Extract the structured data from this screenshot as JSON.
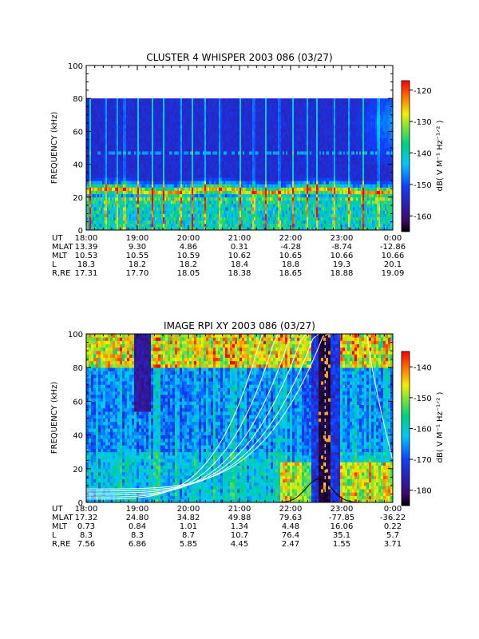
{
  "chart_data": [
    {
      "type": "heatmap",
      "title": "CLUSTER 4 WHISPER 2003 086 (03/27)",
      "ylabel": "FREQUENCY (kHz)",
      "ylim": [
        0,
        100
      ],
      "yticks": [
        "0",
        "20",
        "40",
        "60",
        "80",
        "100"
      ],
      "data_ymax": 80,
      "colorbar": {
        "label": "dB( V M⁻¹ Hz⁻¹ᐟ² )",
        "range": [
          -165,
          -117
        ],
        "ticks": [
          "-120",
          "-130",
          "-140",
          "-150",
          "-160"
        ]
      },
      "time_labels": [
        "18:00",
        "19:00",
        "20:00",
        "21:00",
        "22:00",
        "23:00",
        "0:00"
      ],
      "ephemeris": [
        {
          "label": "UT",
          "values": [
            "18:00",
            "19:00",
            "20:00",
            "21:00",
            "22:00",
            "23:00",
            "0:00"
          ]
        },
        {
          "label": "MLAT",
          "values": [
            "13.39",
            "9.30",
            "4.86",
            "0.31",
            "-4.28",
            "-8.74",
            "-12.86"
          ]
        },
        {
          "label": "MLT",
          "values": [
            "10.53",
            "10.55",
            "10.59",
            "10.62",
            "10.65",
            "10.66",
            "10.66"
          ]
        },
        {
          "label": "L",
          "values": [
            "18.3",
            "18.2",
            "18.2",
            "18.4",
            "18.8",
            "19.3",
            "20.1"
          ]
        },
        {
          "label": "R,RE",
          "values": [
            "17.31",
            "17.70",
            "18.05",
            "18.38",
            "18.65",
            "18.88",
            "19.09"
          ]
        }
      ],
      "features": {
        "main_band_khz": 24,
        "secondary_band_khz": 47,
        "vertical_spike_hours": [
          0.08,
          0.38,
          0.6,
          0.75,
          1.02,
          1.3,
          1.52,
          1.85,
          2.08,
          2.32,
          2.62,
          3.02,
          3.28,
          3.52,
          3.78,
          4.05,
          4.32,
          4.52,
          4.85,
          5.15,
          5.42,
          5.72
        ]
      }
    },
    {
      "type": "heatmap",
      "title": "IMAGE RPI XY 2003 086 (03/27)",
      "ylabel": "FREQUENCY (kHz)",
      "ylim": [
        0,
        100
      ],
      "yticks": [
        "0",
        "20",
        "40",
        "60",
        "80",
        "100"
      ],
      "colorbar": {
        "label": "dB( V M⁻¹ Hz⁻¹ᐟ² )",
        "range": [
          -185,
          -135
        ],
        "ticks": [
          "-140",
          "-150",
          "-160",
          "-170",
          "-180"
        ]
      },
      "time_labels": [
        "18:00",
        "19:00",
        "20:00",
        "21:00",
        "22:00",
        "23:00",
        "0:00"
      ],
      "ephemeris": [
        {
          "label": "UT",
          "values": [
            "18:00",
            "19:00",
            "20:00",
            "21:00",
            "22:00",
            "23:00",
            "0:00"
          ]
        },
        {
          "label": "MLAT",
          "values": [
            "17.32",
            "24.80",
            "34.82",
            "49.88",
            "79.63",
            "-77.85",
            "-36.22"
          ]
        },
        {
          "label": "MLT",
          "values": [
            "0.73",
            "0.84",
            "1.01",
            "1.34",
            "4.48",
            "16.06",
            "0.22"
          ]
        },
        {
          "label": "L",
          "values": [
            "8.3",
            "8.3",
            "8.7",
            "10.7",
            "76.4",
            "35.1",
            "5.7"
          ]
        },
        {
          "label": "R,RE",
          "values": [
            "7.56",
            "6.86",
            "5.85",
            "4.45",
            "2.47",
            "1.55",
            "3.71"
          ]
        }
      ],
      "features": {
        "dark_gap_hours": [
          0.95,
          1.25
        ],
        "black_band_hours": [
          4.55,
          4.8
        ]
      }
    }
  ]
}
